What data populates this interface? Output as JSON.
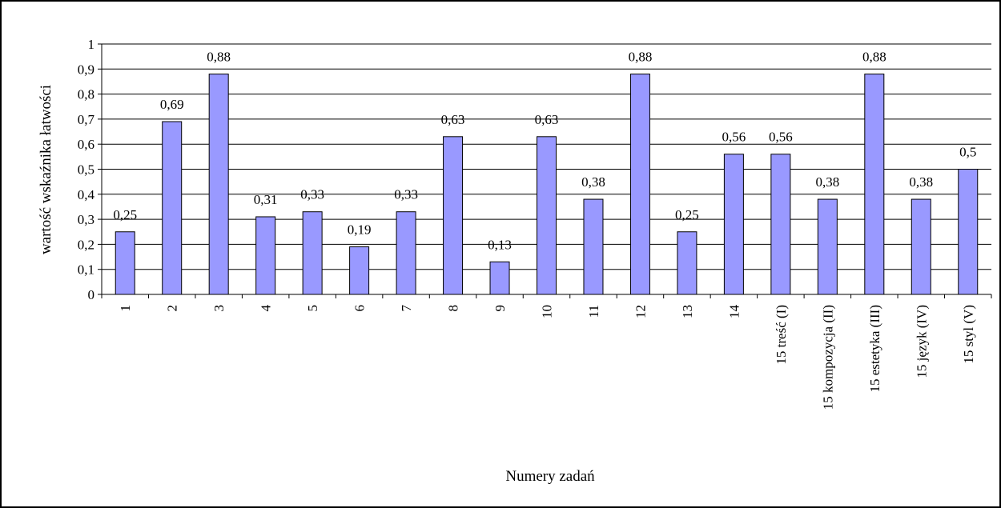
{
  "chart_data": {
    "type": "bar",
    "title": "",
    "xlabel": "Numery zadań",
    "ylabel": "wartość wskaźnika łatwości",
    "ylim": [
      0,
      1
    ],
    "ytick_step": 0.1,
    "yticks": [
      "0",
      "0,1",
      "0,2",
      "0,3",
      "0,4",
      "0,5",
      "0,6",
      "0,7",
      "0,8",
      "0,9",
      "1"
    ],
    "grid": true,
    "legend": "none",
    "bar_color": "#9999ff",
    "bar_border_color": "#000000",
    "categories": [
      "1",
      "2",
      "3",
      "4",
      "5",
      "6",
      "7",
      "8",
      "9",
      "10",
      "11",
      "12",
      "13",
      "14",
      "15 treść (I)",
      "15 kompozycja (II)",
      "15 estetyka (III)",
      "15 język (IV)",
      "15 styl (V)"
    ],
    "values": [
      0.25,
      0.69,
      0.88,
      0.31,
      0.33,
      0.19,
      0.33,
      0.63,
      0.13,
      0.63,
      0.38,
      0.88,
      0.25,
      0.56,
      0.56,
      0.38,
      0.88,
      0.38,
      0.5
    ],
    "data_labels": [
      "0,25",
      "0,69",
      "0,88",
      "0,31",
      "0,33",
      "0,19",
      "0,33",
      "0,63",
      "0,13",
      "0,63",
      "0,38",
      "0,88",
      "0,25",
      "0,56",
      "0,56",
      "0,38",
      "0,88",
      "0,38",
      "0,5"
    ]
  }
}
